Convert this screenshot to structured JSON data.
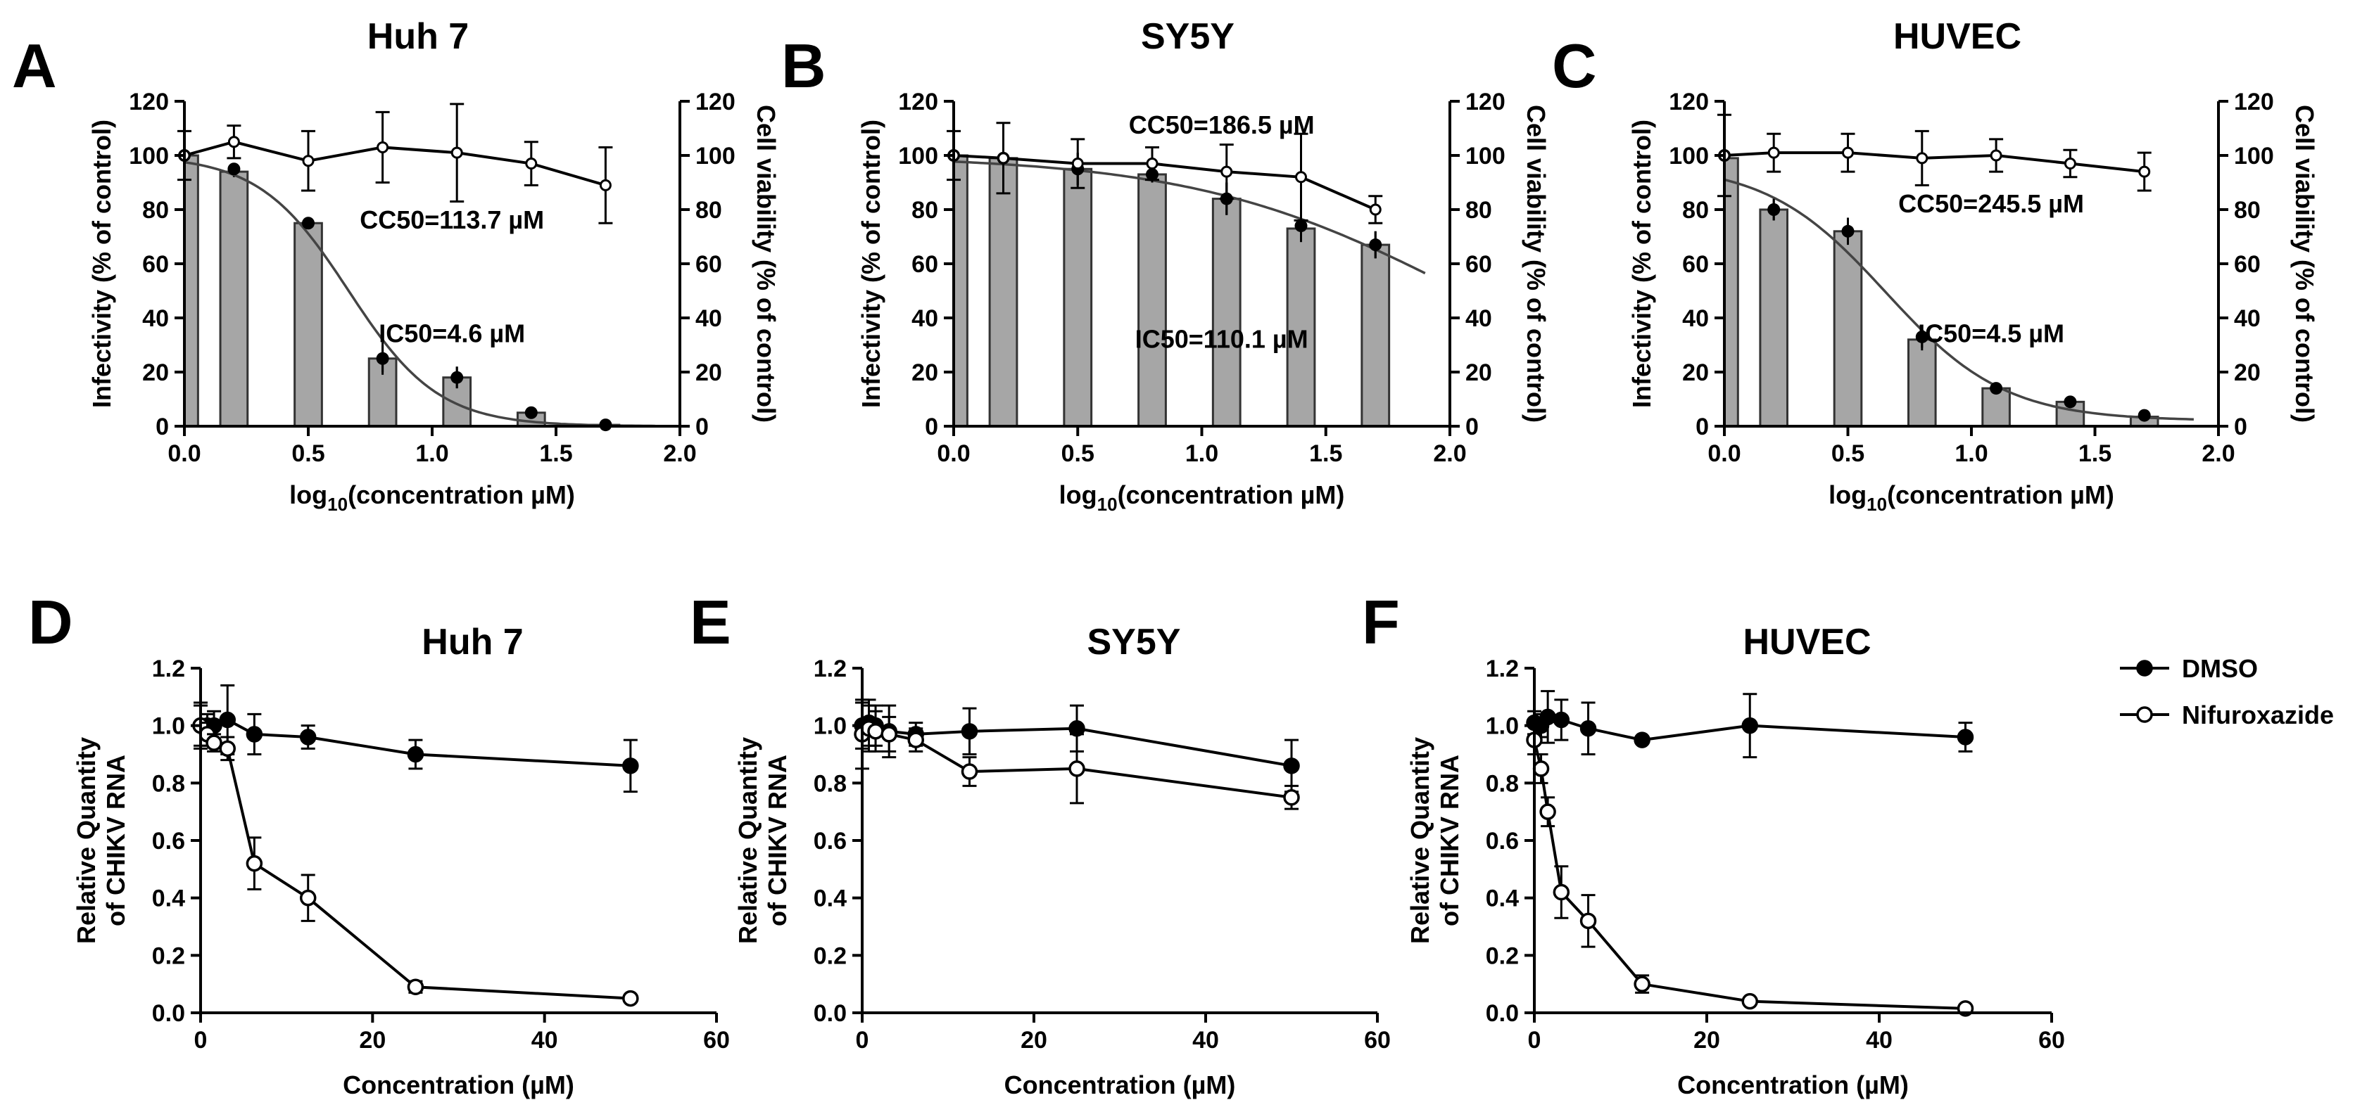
{
  "chart_data": [
    {
      "id": "A",
      "letter": "A",
      "title": "Huh 7",
      "type": "bar+line",
      "xlabel_main": "log",
      "xlabel_sub": "10",
      "xlabel_rest": "(concentration µM)",
      "ylabel": "Infectivity (% of control)",
      "y2label": "Cell viability (% of control)",
      "xlim": [
        0,
        2
      ],
      "ylim": [
        0,
        120
      ],
      "x_ticks": [
        "0.0",
        "0.5",
        "1.0",
        "1.5",
        "2.0"
      ],
      "y_ticks": [
        "0",
        "20",
        "40",
        "60",
        "80",
        "100",
        "120"
      ],
      "bars": {
        "x": [
          0.0,
          0.2,
          0.5,
          0.8,
          1.1,
          1.4,
          1.7
        ],
        "values": [
          100,
          94,
          75,
          25,
          18,
          5,
          0.5
        ],
        "err": [
          3,
          2,
          1,
          5,
          4,
          1,
          0.5
        ]
      },
      "infectivity_points": {
        "x": [
          0.0,
          0.2,
          0.5,
          0.8,
          1.1,
          1.4,
          1.7
        ],
        "values": [
          100,
          95,
          75,
          25,
          18,
          5,
          0.5
        ],
        "err": [
          8,
          2,
          1,
          6,
          4,
          1,
          0.5
        ]
      },
      "infectivity_fit": {
        "top": 100,
        "bottom": 0,
        "logIC50": 0.663,
        "hill": 2.4
      },
      "viability": {
        "x": [
          0.0,
          0.2,
          0.5,
          0.8,
          1.1,
          1.4,
          1.7
        ],
        "values": [
          100,
          105,
          98,
          103,
          101,
          97,
          89
        ],
        "err": [
          9,
          6,
          11,
          13,
          18,
          8,
          14
        ]
      },
      "annotations": [
        {
          "text": "CC50=113.7 µM",
          "x": 1.08,
          "y": 73
        },
        {
          "text": "IC50=4.6 µM",
          "x": 1.08,
          "y": 31
        }
      ]
    },
    {
      "id": "B",
      "letter": "B",
      "title": "SY5Y",
      "type": "bar+line",
      "xlabel_main": "log",
      "xlabel_sub": "10",
      "xlabel_rest": "(concentration µM)",
      "ylabel": "Infectivity (% of control)",
      "y2label": "Cell viability (% of control)",
      "xlim": [
        0,
        2
      ],
      "ylim": [
        0,
        120
      ],
      "x_ticks": [
        "0.0",
        "0.5",
        "1.0",
        "1.5",
        "2.0"
      ],
      "y_ticks": [
        "0",
        "20",
        "40",
        "60",
        "80",
        "100",
        "120"
      ],
      "bars": {
        "x": [
          0.0,
          0.2,
          0.5,
          0.8,
          1.1,
          1.4,
          1.7
        ],
        "values": [
          100,
          99,
          95,
          93,
          84,
          73,
          67
        ],
        "err": [
          10,
          8,
          6,
          3,
          6,
          5,
          5
        ]
      },
      "infectivity_points": {
        "x": [
          0.0,
          0.2,
          0.5,
          0.8,
          1.1,
          1.4,
          1.7
        ],
        "values": [
          100,
          99,
          95,
          93,
          84,
          74,
          67
        ],
        "err": [
          10,
          8,
          6,
          3,
          6,
          5,
          5
        ]
      },
      "infectivity_fit": {
        "top": 100,
        "bottom": 0,
        "logIC50": 2.042,
        "hill": 0.8
      },
      "viability": {
        "x": [
          0.0,
          0.2,
          0.5,
          0.8,
          1.1,
          1.4,
          1.7
        ],
        "values": [
          100,
          99,
          97,
          97,
          94,
          92,
          80
        ],
        "err": [
          9,
          13,
          9,
          6,
          10,
          16,
          5
        ]
      },
      "annotations": [
        {
          "text": "CC50=186.5 µM",
          "x": 1.08,
          "y": 108
        },
        {
          "text": "IC50=110.1 µM",
          "x": 1.08,
          "y": 29
        }
      ]
    },
    {
      "id": "C",
      "letter": "C",
      "title": "HUVEC",
      "type": "bar+line",
      "xlabel_main": "log",
      "xlabel_sub": "10",
      "xlabel_rest": "(concentration µM)",
      "ylabel": "Infectivity (% of control)",
      "y2label": "Cell viability (% of control)",
      "xlim": [
        0,
        2
      ],
      "ylim": [
        0,
        120
      ],
      "x_ticks": [
        "0.0",
        "0.5",
        "1.0",
        "1.5",
        "2.0"
      ],
      "y_ticks": [
        "0",
        "20",
        "40",
        "60",
        "80",
        "100",
        "120"
      ],
      "bars": {
        "x": [
          0.0,
          0.2,
          0.5,
          0.8,
          1.1,
          1.4,
          1.7
        ],
        "values": [
          99,
          80,
          72,
          32,
          14,
          9,
          3.5
        ],
        "err": [
          15,
          4,
          5,
          4,
          1,
          1,
          1
        ]
      },
      "infectivity_points": {
        "x": [
          0.0,
          0.2,
          0.5,
          0.8,
          1.1,
          1.4,
          1.7
        ],
        "values": [
          100,
          80,
          72,
          33,
          14,
          9,
          4
        ],
        "err": [
          15,
          4,
          5,
          4,
          1,
          1,
          1
        ]
      },
      "infectivity_fit": {
        "top": 97,
        "bottom": 2,
        "logIC50": 0.653,
        "hill": 1.8
      },
      "viability": {
        "x": [
          0.0,
          0.2,
          0.5,
          0.8,
          1.1,
          1.4,
          1.7
        ],
        "values": [
          100,
          101,
          101,
          99,
          100,
          97,
          94
        ],
        "err": [
          15,
          7,
          7,
          10,
          6,
          5,
          7
        ]
      },
      "annotations": [
        {
          "text": "CC50=245.5 µM",
          "x": 1.08,
          "y": 79
        },
        {
          "text": "IC50=4.5 µM",
          "x": 1.08,
          "y": 31
        }
      ]
    },
    {
      "id": "D",
      "letter": "D",
      "title": "Huh 7",
      "type": "line",
      "xlabel": "Concentration (µM)",
      "ylabel_line1": "Relative Quantity",
      "ylabel_line2": "of CHIKV RNA",
      "xlim": [
        0,
        60
      ],
      "ylim": [
        0,
        1.2
      ],
      "x_ticks": [
        "0",
        "20",
        "40",
        "60"
      ],
      "y_ticks": [
        "0.0",
        "0.2",
        "0.4",
        "0.6",
        "0.8",
        "1.0",
        "1.2"
      ],
      "series": [
        {
          "name": "DMSO",
          "filled": true,
          "x": [
            0,
            0.78,
            1.56,
            3.13,
            6.25,
            12.5,
            25,
            50
          ],
          "values": [
            1.0,
            1.0,
            1.0,
            1.02,
            0.97,
            0.96,
            0.9,
            0.86
          ],
          "err": [
            0.08,
            0.04,
            0.05,
            0.12,
            0.07,
            0.04,
            0.05,
            0.09
          ]
        },
        {
          "name": "Nifuroxazide",
          "filled": false,
          "x": [
            0,
            0.78,
            1.56,
            3.13,
            6.25,
            12.5,
            25,
            50
          ],
          "values": [
            1.0,
            0.97,
            0.94,
            0.92,
            0.52,
            0.4,
            0.09,
            0.05
          ],
          "err": [
            0.07,
            0.04,
            0.03,
            0.04,
            0.09,
            0.08,
            0.02,
            0.01
          ]
        }
      ]
    },
    {
      "id": "E",
      "letter": "E",
      "title": "SY5Y",
      "type": "line",
      "xlabel": "Concentration (µM)",
      "ylabel_line1": "Relative Quantity",
      "ylabel_line2": "of CHIKV RNA",
      "xlim": [
        0,
        60
      ],
      "ylim": [
        0,
        1.2
      ],
      "x_ticks": [
        "0",
        "20",
        "40",
        "60"
      ],
      "y_ticks": [
        "0.0",
        "0.2",
        "0.4",
        "0.6",
        "0.8",
        "1.0",
        "1.2"
      ],
      "series": [
        {
          "name": "DMSO",
          "filled": true,
          "x": [
            0,
            0.78,
            1.56,
            3.13,
            6.25,
            12.5,
            25,
            50
          ],
          "values": [
            1.0,
            1.01,
            1.0,
            0.98,
            0.97,
            0.98,
            0.99,
            0.86
          ],
          "err": [
            0.08,
            0.08,
            0.07,
            0.09,
            0.04,
            0.08,
            0.08,
            0.09
          ]
        },
        {
          "name": "Nifuroxazide",
          "filled": false,
          "x": [
            0,
            0.78,
            1.56,
            3.13,
            6.25,
            12.5,
            25,
            50
          ],
          "values": [
            0.97,
            0.99,
            0.98,
            0.97,
            0.95,
            0.84,
            0.85,
            0.75
          ],
          "err": [
            0.12,
            0.08,
            0.07,
            0.06,
            0.04,
            0.05,
            0.12,
            0.04
          ]
        }
      ]
    },
    {
      "id": "F",
      "letter": "F",
      "title": "HUVEC",
      "type": "line",
      "xlabel": "Concentration (µM)",
      "ylabel_line1": "Relative Quantity",
      "ylabel_line2": "of CHIKV RNA",
      "xlim": [
        0,
        60
      ],
      "ylim": [
        0,
        1.2
      ],
      "x_ticks": [
        "0",
        "20",
        "40",
        "60"
      ],
      "y_ticks": [
        "0.0",
        "0.2",
        "0.4",
        "0.6",
        "0.8",
        "1.0",
        "1.2"
      ],
      "series": [
        {
          "name": "DMSO",
          "filled": true,
          "x": [
            0,
            0.78,
            1.56,
            3.13,
            6.25,
            12.5,
            25,
            50
          ],
          "values": [
            1.01,
            1.0,
            1.03,
            1.02,
            0.99,
            0.95,
            1.0,
            0.96
          ],
          "err": [
            0.04,
            0.04,
            0.09,
            0.07,
            0.09,
            0.01,
            0.11,
            0.05
          ]
        },
        {
          "name": "Nifuroxazide",
          "filled": false,
          "x": [
            0,
            0.78,
            1.56,
            3.13,
            6.25,
            12.5,
            25,
            50
          ],
          "values": [
            0.95,
            0.85,
            0.7,
            0.42,
            0.32,
            0.1,
            0.04,
            0.015
          ],
          "err": [
            0.05,
            0.05,
            0.05,
            0.09,
            0.09,
            0.03,
            0.01,
            0.005
          ]
        }
      ]
    }
  ],
  "legend": {
    "items": [
      {
        "label": "DMSO",
        "filled": true
      },
      {
        "label": "Nifuroxazide",
        "filled": false
      }
    ]
  }
}
